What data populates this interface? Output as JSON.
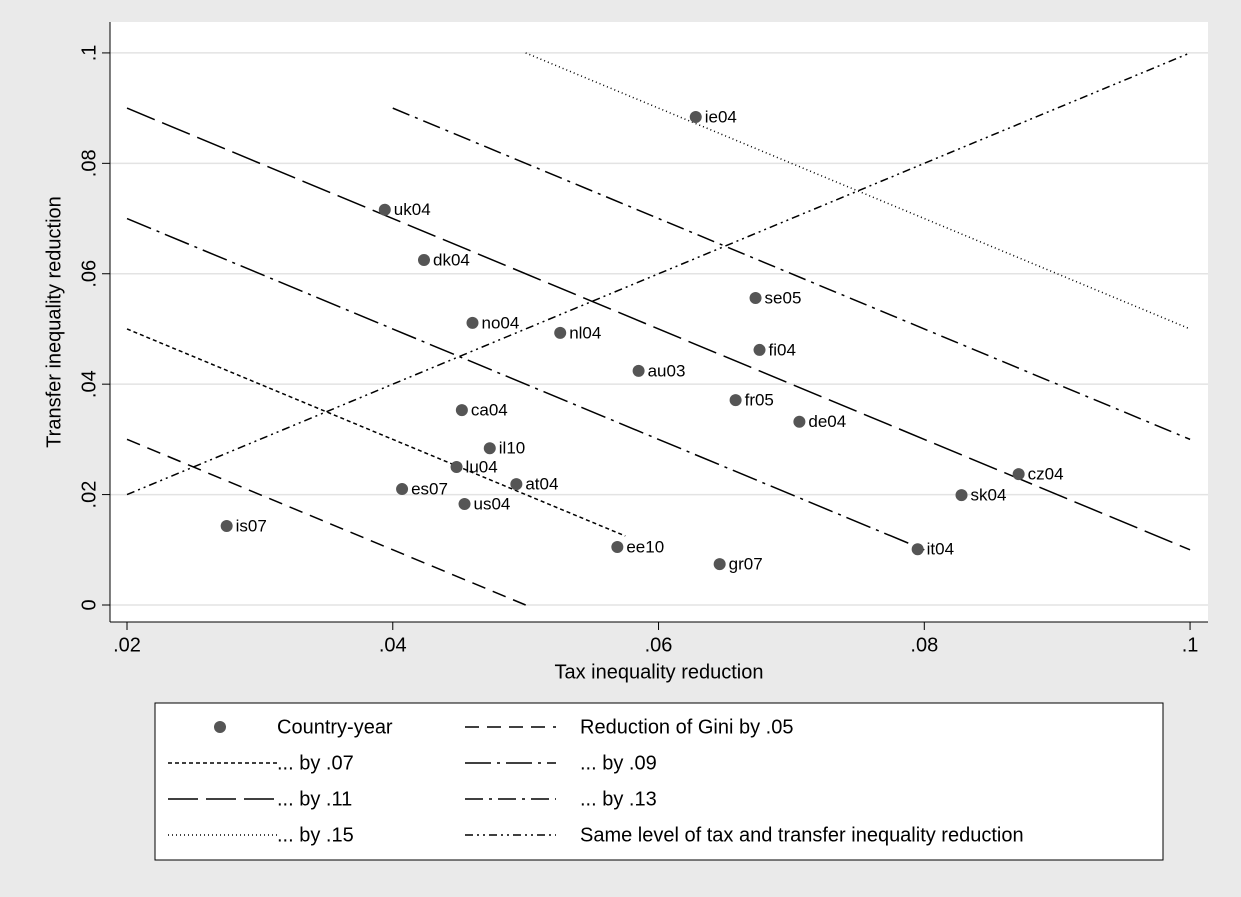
{
  "chart_data": {
    "type": "scatter",
    "x_label": "Tax inequality reduction",
    "y_label": "Transfer inequality reduction",
    "xlim": [
      0.01872,
      0.10135
    ],
    "ylim": [
      -0.00308,
      0.1056
    ],
    "xticks": [
      {
        "value": 0.02,
        "label": ".02"
      },
      {
        "value": 0.04,
        "label": ".04"
      },
      {
        "value": 0.06,
        "label": ".06"
      },
      {
        "value": 0.08,
        "label": ".08"
      },
      {
        "value": 0.1,
        "label": ".1"
      }
    ],
    "yticks": [
      0,
      {
        "value": 0.02,
        "label": ".02"
      },
      {
        "value": 0.04,
        "label": ".04"
      },
      {
        "value": 0.06,
        "label": ".06"
      },
      {
        "value": 0.08,
        "label": ".08"
      },
      {
        "value": 0.1,
        "label": ".1"
      }
    ],
    "grid": true,
    "series": [
      {
        "name": "Country-year",
        "mode": "markers",
        "color": "#555555",
        "labels": [
          "uk04",
          "dk04",
          "no04",
          "nl04",
          "au03",
          "ca04",
          "il10",
          "lu04",
          "es07",
          "at04",
          "us04",
          "is07",
          "ee10",
          "gr07",
          "it04",
          "sk04",
          "cz04",
          "de04",
          "fr05",
          "fi04",
          "se05",
          "ie04"
        ],
        "x": [
          0.0394,
          0.04235,
          0.046,
          0.0526,
          0.0585,
          0.0452,
          0.0473,
          0.0448,
          0.0407,
          0.0493,
          0.0454,
          0.0275,
          0.0569,
          0.0646,
          0.0795,
          0.0828,
          0.0871,
          0.0706,
          0.0658,
          0.0676,
          0.0673,
          0.0628
        ],
        "values": [
          0.0716,
          0.0625,
          0.0511,
          0.0493,
          0.0424,
          0.0353,
          0.0284,
          0.025,
          0.021,
          0.0219,
          0.0183,
          0.0143,
          0.0105,
          0.0074,
          0.0101,
          0.0199,
          0.0237,
          0.0332,
          0.0371,
          0.0462,
          0.0556,
          0.0884
        ]
      },
      {
        "name": "Reduction of Gini by .05",
        "mode": "lines",
        "color": "#000000",
        "dash": "14 8",
        "x": [
          0.02,
          0.05
        ],
        "values": [
          0.03,
          0
        ]
      },
      {
        "name": "... by .07",
        "mode": "lines",
        "color": "#000000",
        "dash": "4 3",
        "x": [
          0.02,
          0.0575
        ],
        "values": [
          0.05,
          0.0125
        ]
      },
      {
        "name": "... by .09",
        "mode": "lines",
        "color": "#000000",
        "dash": "26 6 3 6",
        "x": [
          0.02,
          0.08
        ],
        "values": [
          0.07,
          0.01
        ]
      },
      {
        "name": "... by .11",
        "mode": "lines",
        "color": "#000000",
        "dash": "30 8",
        "x": [
          0.02,
          0.1
        ],
        "values": [
          0.09,
          0.01
        ]
      },
      {
        "name": "... by .13",
        "mode": "lines",
        "color": "#000000",
        "dash": "18 6 3 6",
        "x": [
          0.04,
          0.1
        ],
        "values": [
          0.09,
          0.03
        ]
      },
      {
        "name": "... by .15",
        "mode": "lines",
        "color": "#000000",
        "dash": "1 3",
        "x": [
          0.05,
          0.1
        ],
        "values": [
          0.1,
          0.05
        ]
      },
      {
        "name": "Same level of tax and transfer inequality reduction",
        "mode": "lines",
        "color": "#000000",
        "dash": "8 4 2 4 2 4",
        "x": [
          0.02,
          0.1
        ],
        "values": [
          0.02,
          0.1
        ]
      }
    ]
  }
}
